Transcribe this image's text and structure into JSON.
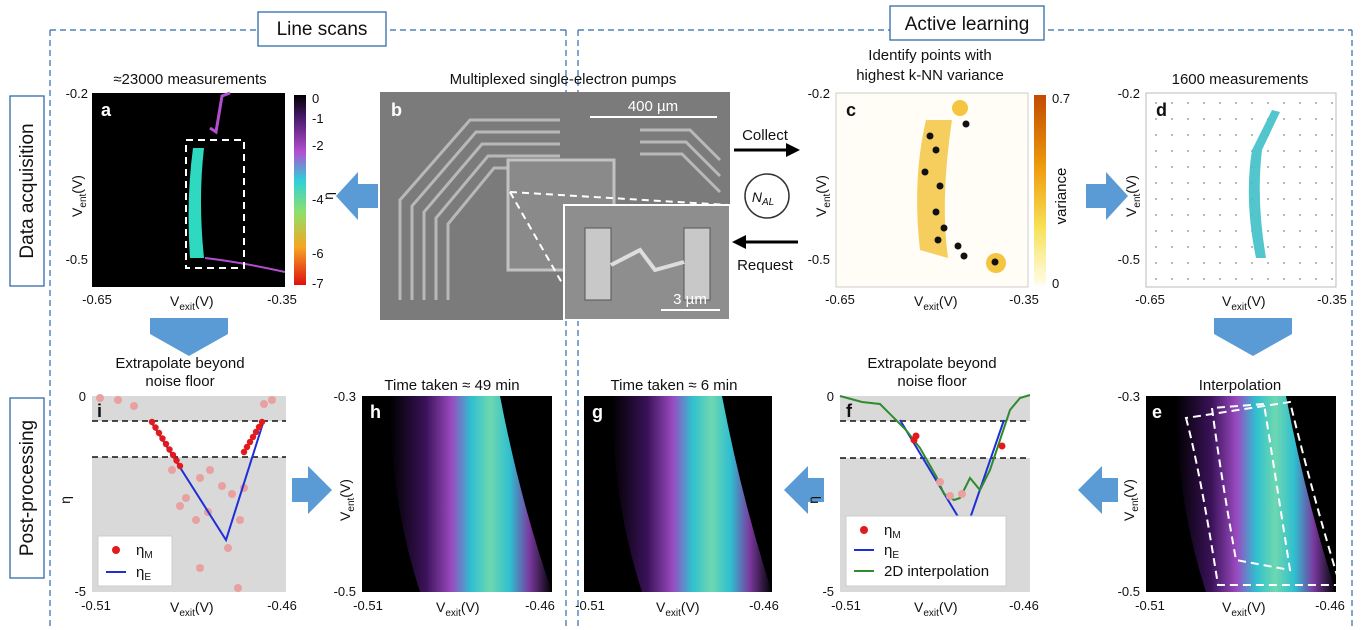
{
  "headers": {
    "line_scans": "Line scans",
    "active_learning": "Active learning"
  },
  "side_labels": {
    "acquisition": "Data acquisition",
    "post": "Post-processing"
  },
  "panels": {
    "a": {
      "letter": "a",
      "title": "≈23000 measurements",
      "xticks": [
        "-0.65",
        "-0.35"
      ],
      "yticks": [
        "-0.2",
        "-0.5"
      ],
      "colorbar": [
        "0",
        "-1",
        "-2",
        "-4",
        "-6",
        "-7"
      ],
      "cbar_label": "η",
      "xlab": "V",
      "xsub": "exit",
      "xunit": "(V)",
      "ylab": "V",
      "ysub": "ent",
      "yunit": "(V)"
    },
    "b": {
      "letter": "b",
      "title": "Multiplexed single-electron pumps",
      "scale1": "400 µm",
      "scale2": "3 µm"
    },
    "c": {
      "letter": "c",
      "title1": "Identify points with",
      "title2": "highest k-NN variance",
      "xticks": [
        "-0.65",
        "-0.35"
      ],
      "yticks": [
        "-0.2",
        "-0.5"
      ],
      "colorbar": [
        "0.7",
        "0"
      ],
      "cbar_label": "variance"
    },
    "d": {
      "letter": "d",
      "title": "1600 measurements",
      "xticks": [
        "-0.65",
        "-0.35"
      ],
      "yticks": [
        "-0.2",
        "-0.5"
      ]
    },
    "e": {
      "letter": "e",
      "title": "Interpolation",
      "xticks": [
        "-0.51",
        "-0.46"
      ],
      "yticks": [
        "-0.3",
        "-0.5"
      ]
    },
    "f": {
      "letter": "f",
      "title1": "Extrapolate beyond",
      "title2": "noise floor",
      "xticks": [
        "-0.51",
        "-0.46"
      ],
      "yticks": [
        "0",
        "-5"
      ],
      "legend": [
        "η",
        "η",
        "2D interpolation"
      ],
      "legend_sub": [
        "M",
        "E"
      ]
    },
    "g": {
      "letter": "g",
      "title": "Time taken ≈ 6 min",
      "xticks": [
        "-0.51",
        "-0.46"
      ],
      "yticks": [
        "-0.3",
        "-0.5"
      ]
    },
    "h": {
      "letter": "h",
      "title": "Time taken ≈ 49 min",
      "xticks": [
        "-0.51",
        "-0.46"
      ],
      "yticks": [
        "-0.3",
        "-0.5"
      ]
    },
    "i": {
      "letter": "i",
      "title1": "Extrapolate beyond",
      "title2": "noise floor",
      "xticks": [
        "-0.51",
        "-0.46"
      ],
      "yticks": [
        "0",
        "-5"
      ],
      "legend": [
        "η",
        "η"
      ],
      "legend_sub": [
        "M",
        "E"
      ]
    }
  },
  "arrows": {
    "collect": "Collect",
    "request": "Request",
    "nal": "N",
    "nal_sub": "AL"
  },
  "colors": {
    "frame": "#2f6ba8",
    "arrow": "#5b9bd5",
    "red": "#e31a1c",
    "blue": "#1f2fd6",
    "green": "#2e8b2e",
    "pink": "#e8a0a0"
  }
}
